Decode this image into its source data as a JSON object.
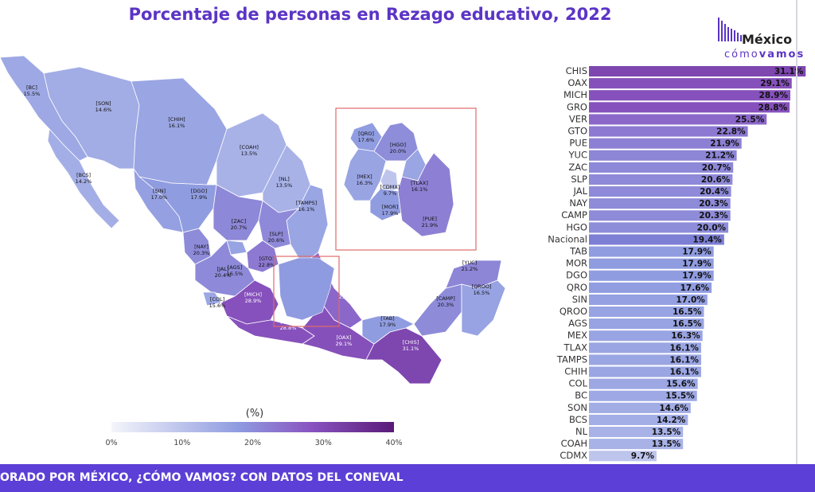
{
  "title": "Porcentaje de personas en Rezago educativo, 2022",
  "logo": {
    "line1": "México",
    "line2a": "cómo",
    "line2b": "vamos",
    "icon": "bar-chart-logo-icon"
  },
  "footer": "ORADO POR MÉXICO, ¿CÓMO VAMOS? CON DATOS DEL CONEVAL",
  "colors": {
    "accent": "#5b34c6",
    "footer": "#5b3fd6",
    "low": "#f4f5fb",
    "mid": "#8f9be0",
    "high": "#5a1a78",
    "national": "#7c7fd3"
  },
  "chart_data": [
    {
      "type": "bar",
      "orientation": "horizontal",
      "categories": [
        "CHIS",
        "OAX",
        "MICH",
        "GRO",
        "VER",
        "GTO",
        "PUE",
        "YUC",
        "ZAC",
        "SLP",
        "JAL",
        "NAY",
        "CAMP",
        "HGO",
        "Nacional",
        "TAB",
        "MOR",
        "DGO",
        "QRO",
        "SIN",
        "QROO",
        "AGS",
        "MEX",
        "TLAX",
        "TAMPS",
        "CHIH",
        "COL",
        "BC",
        "SON",
        "BCS",
        "NL",
        "COAH",
        "CDMX"
      ],
      "values": [
        31.1,
        29.1,
        28.9,
        28.8,
        25.5,
        22.8,
        21.9,
        21.2,
        20.7,
        20.6,
        20.4,
        20.3,
        20.3,
        20.0,
        19.4,
        17.9,
        17.9,
        17.9,
        17.6,
        17.0,
        16.5,
        16.5,
        16.3,
        16.1,
        16.1,
        16.1,
        15.6,
        15.5,
        14.6,
        14.2,
        13.5,
        13.5,
        9.7
      ],
      "labels": [
        "31.1%",
        "29.1%",
        "28.9%",
        "28.8%",
        "25.5%",
        "22.8%",
        "21.9%",
        "21.2%",
        "20.7%",
        "20.6%",
        "20.4%",
        "20.3%",
        "20.3%",
        "20.0%",
        "19.4%",
        "17.9%",
        "17.9%",
        "17.9%",
        "17.6%",
        "17.0%",
        "16.5%",
        "16.5%",
        "16.3%",
        "16.1%",
        "16.1%",
        "16.1%",
        "15.6%",
        "15.5%",
        "14.6%",
        "14.2%",
        "13.5%",
        "13.5%",
        "9.7%"
      ],
      "unit": "%"
    },
    {
      "type": "choropleth",
      "regions": [
        {
          "label": "[BC]",
          "value": "15.5%",
          "v": 15.5
        },
        {
          "label": "[SON]",
          "value": "14.6%",
          "v": 14.6
        },
        {
          "label": "[CHIH]",
          "value": "16.1%",
          "v": 16.1
        },
        {
          "label": "[COAH]",
          "value": "13.5%",
          "v": 13.5
        },
        {
          "label": "[BCS]",
          "value": "14.2%",
          "v": 14.2
        },
        {
          "label": "[NL]",
          "value": "13.5%",
          "v": 13.5
        },
        {
          "label": "[SIN]",
          "value": "17.0%",
          "v": 17.0
        },
        {
          "label": "[DGO]",
          "value": "17.9%",
          "v": 17.9
        },
        {
          "label": "[TAMPS]",
          "value": "16.1%",
          "v": 16.1
        },
        {
          "label": "[ZAC]",
          "value": "20.7%",
          "v": 20.7
        },
        {
          "label": "[SLP]",
          "value": "20.6%",
          "v": 20.6
        },
        {
          "label": "[AGS]",
          "value": "16.5%",
          "v": 16.5
        },
        {
          "label": "[NAY]",
          "value": "20.3%",
          "v": 20.3
        },
        {
          "label": "[GTO]",
          "value": "22.8%",
          "v": 22.8
        },
        {
          "label": "[JAL]",
          "value": "20.4%",
          "v": 20.4
        },
        {
          "label": "[COL]",
          "value": "15.6%",
          "v": 15.6
        },
        {
          "label": "[MICH]",
          "value": "28.9%",
          "v": 28.9
        },
        {
          "label": "[VER]",
          "value": "25.5%",
          "v": 25.5
        },
        {
          "label": "[GRO]",
          "value": "28.8%",
          "v": 28.8
        },
        {
          "label": "[OAX]",
          "value": "29.1%",
          "v": 29.1
        },
        {
          "label": "[CHIS]",
          "value": "31.1%",
          "v": 31.1
        },
        {
          "label": "[TAB]",
          "value": "17.9%",
          "v": 17.9
        },
        {
          "label": "[CAMP]",
          "value": "20.3%",
          "v": 20.3
        },
        {
          "label": "[YUC]",
          "value": "21.2%",
          "v": 21.2
        },
        {
          "label": "[QROO]",
          "value": "16.5%",
          "v": 16.5
        }
      ],
      "inset_regions": [
        {
          "label": "[QRO]",
          "value": "17.6%",
          "v": 17.6
        },
        {
          "label": "[HGO]",
          "value": "20.0%",
          "v": 20.0
        },
        {
          "label": "[MEX]",
          "value": "16.3%",
          "v": 16.3
        },
        {
          "label": "[CDMX]",
          "value": "9.7%",
          "v": 9.7
        },
        {
          "label": "[TLAX]",
          "value": "16.1%",
          "v": 16.1
        },
        {
          "label": "[MOR]",
          "value": "17.9%",
          "v": 17.9
        },
        {
          "label": "[PUE]",
          "value": "21.9%",
          "v": 21.9
        }
      ]
    }
  ],
  "legend": {
    "title": "(%)",
    "ticks": [
      "0%",
      "10%",
      "20%",
      "30%",
      "40%"
    ],
    "min": 0,
    "max": 40
  }
}
